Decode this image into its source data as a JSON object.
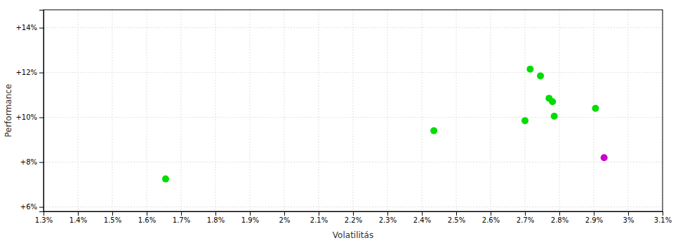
{
  "chart_data": {
    "type": "scatter",
    "xlabel": "Volatilitás",
    "ylabel": "Performance",
    "xlim": [
      0.013,
      0.031
    ],
    "ylim": [
      0.058,
      0.148
    ],
    "xticks": [
      {
        "value": 0.013,
        "label": "1.3%"
      },
      {
        "value": 0.014,
        "label": "1.4%"
      },
      {
        "value": 0.015,
        "label": "1.5%"
      },
      {
        "value": 0.016,
        "label": "1.6%"
      },
      {
        "value": 0.017,
        "label": "1.7%"
      },
      {
        "value": 0.018,
        "label": "1.8%"
      },
      {
        "value": 0.019,
        "label": "1.9%"
      },
      {
        "value": 0.02,
        "label": "2%"
      },
      {
        "value": 0.021,
        "label": "2.1%"
      },
      {
        "value": 0.022,
        "label": "2.2%"
      },
      {
        "value": 0.023,
        "label": "2.3%"
      },
      {
        "value": 0.024,
        "label": "2.4%"
      },
      {
        "value": 0.025,
        "label": "2.5%"
      },
      {
        "value": 0.026,
        "label": "2.6%"
      },
      {
        "value": 0.027,
        "label": "2.7%"
      },
      {
        "value": 0.028,
        "label": "2.8%"
      },
      {
        "value": 0.029,
        "label": "2.9%"
      },
      {
        "value": 0.03,
        "label": "3%"
      },
      {
        "value": 0.031,
        "label": "3.1%"
      }
    ],
    "yticks": [
      {
        "value": 0.06,
        "label": "+6%"
      },
      {
        "value": 0.08,
        "label": "+8%"
      },
      {
        "value": 0.1,
        "label": "+10%"
      },
      {
        "value": 0.12,
        "label": "+12%"
      },
      {
        "value": 0.14,
        "label": "+14%"
      }
    ],
    "grid": true,
    "series": [
      {
        "color": "#00dd00",
        "x": [
          0.01655,
          0.02435,
          0.02715,
          0.02745,
          0.0277,
          0.0278,
          0.02785,
          0.027,
          0.02905
        ],
        "values": [
          0.0725,
          0.094,
          0.1215,
          0.1185,
          0.1085,
          0.107,
          0.1005,
          0.0985,
          0.104
        ]
      },
      {
        "color": "#cc00cc",
        "x": [
          0.0293
        ],
        "values": [
          0.082
        ]
      }
    ]
  }
}
